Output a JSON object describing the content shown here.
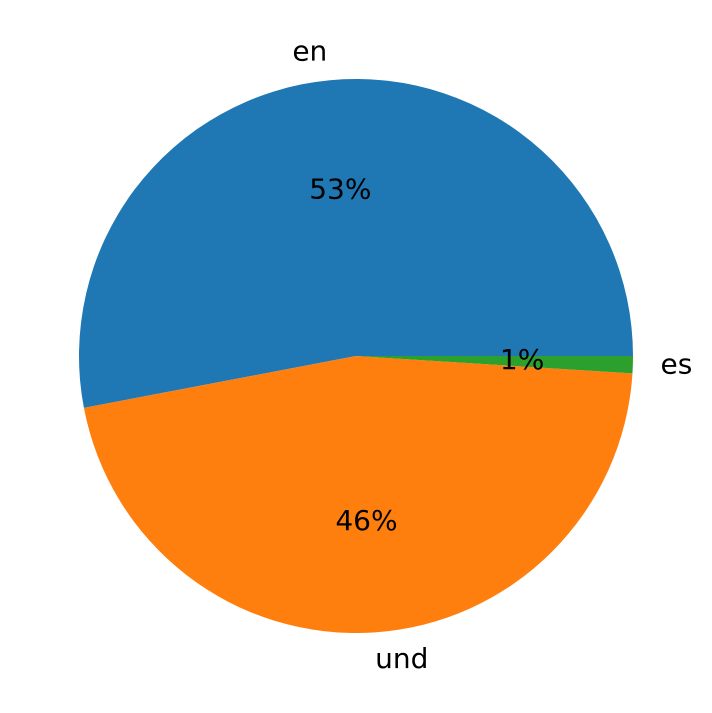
{
  "chart_data": {
    "type": "pie",
    "categories": [
      "en",
      "und",
      "es"
    ],
    "values": [
      53,
      46,
      1
    ],
    "value_labels": [
      "53%",
      "46%",
      "1%"
    ],
    "colors": [
      "#1f77b4",
      "#ff7f0e",
      "#2ca02c"
    ]
  }
}
